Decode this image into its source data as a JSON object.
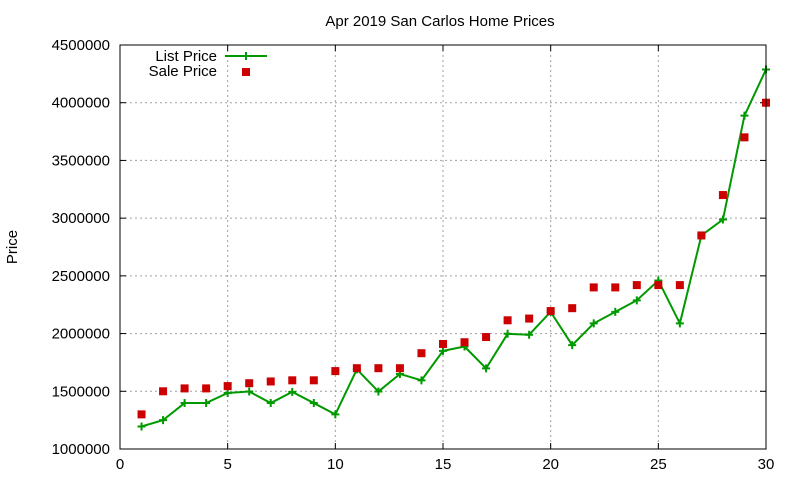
{
  "chart_data": {
    "type": "line",
    "title": "Apr 2019 San Carlos Home Prices",
    "xlabel": "",
    "ylabel": "Price",
    "xlim": [
      0,
      30
    ],
    "ylim": [
      1000000,
      4500000
    ],
    "xticks": [
      0,
      5,
      10,
      15,
      20,
      25,
      30
    ],
    "yticks": [
      1000000,
      1500000,
      2000000,
      2500000,
      3000000,
      3500000,
      4000000,
      4500000
    ],
    "grid": true,
    "legend_position": "top-left",
    "x": [
      1,
      2,
      3,
      4,
      5,
      6,
      7,
      8,
      9,
      10,
      11,
      12,
      13,
      14,
      15,
      16,
      17,
      18,
      19,
      20,
      21,
      22,
      23,
      24,
      25,
      26,
      27,
      28,
      29,
      30
    ],
    "series": [
      {
        "name": "List Price",
        "style": "line-with-plus-markers",
        "color": "#009900",
        "values": [
          1195000,
          1250000,
          1398000,
          1398000,
          1485000,
          1498000,
          1398000,
          1495000,
          1398000,
          1300000,
          1690000,
          1498000,
          1650000,
          1595000,
          1850000,
          1888000,
          1698000,
          1998000,
          1990000,
          2188000,
          1900000,
          2088000,
          2188000,
          2288000,
          2460000,
          2088000,
          2850000,
          2988000,
          3888000,
          4288000
        ]
      },
      {
        "name": "Sale Price",
        "style": "square-markers",
        "color": "#cc0000",
        "values": [
          1300000,
          1500000,
          1525000,
          1525000,
          1545000,
          1570000,
          1585000,
          1595000,
          1595000,
          1675000,
          1700000,
          1700000,
          1700000,
          1830000,
          1910000,
          1925000,
          1970000,
          2115000,
          2130000,
          2195000,
          2220000,
          2400000,
          2400000,
          2420000,
          2420000,
          2420000,
          2850000,
          3200000,
          3700000,
          4000000
        ]
      }
    ]
  }
}
